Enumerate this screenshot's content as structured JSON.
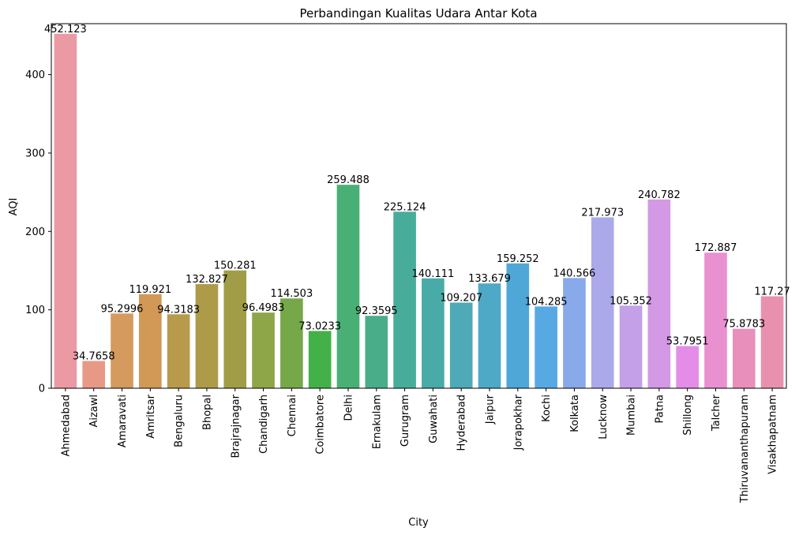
{
  "chart_data": {
    "type": "bar",
    "title": "Perbandingan Kualitas Udara Antar Kota",
    "xlabel": "City",
    "ylabel": "AQI",
    "ylim": [
      0,
      465
    ],
    "yticks": [
      0,
      100,
      200,
      300,
      400
    ],
    "grid": false,
    "categories": [
      "Ahmedabad",
      "Aizawl",
      "Amaravati",
      "Amritsar",
      "Bengaluru",
      "Bhopal",
      "Brajrajnagar",
      "Chandigarh",
      "Chennai",
      "Coimbatore",
      "Delhi",
      "Ernakulam",
      "Gurugram",
      "Guwahati",
      "Hyderabad",
      "Jaipur",
      "Jorapokhar",
      "Kochi",
      "Kolkata",
      "Lucknow",
      "Mumbai",
      "Patna",
      "Shillong",
      "Talcher",
      "Thiruvananthapuram",
      "Visakhapatnam"
    ],
    "values": [
      452.123,
      34.7658,
      95.2996,
      119.921,
      94.3183,
      132.827,
      150.281,
      96.4983,
      114.503,
      73.0233,
      259.488,
      92.3595,
      225.124,
      140.111,
      109.207,
      133.679,
      159.252,
      104.285,
      140.566,
      217.973,
      105.352,
      240.782,
      53.7951,
      172.887,
      75.8783,
      117.27
    ],
    "value_labels": [
      "452.123",
      "34.7658",
      "95.2996",
      "119.921",
      "94.3183",
      "132.827",
      "150.281",
      "96.4983",
      "114.503",
      "73.0233",
      "259.488",
      "92.3595",
      "225.124",
      "140.111",
      "109.207",
      "133.679",
      "159.252",
      "104.285",
      "140.566",
      "217.973",
      "105.352",
      "240.782",
      "53.7951",
      "172.887",
      "75.8783",
      "117.27"
    ],
    "colors": [
      "#eb9aa3",
      "#e89985",
      "#d59a5e",
      "#d19856",
      "#b89a4c",
      "#ae9b4a",
      "#a19d46",
      "#8ea648",
      "#76a84a",
      "#43b148",
      "#49b075",
      "#4aad8a",
      "#47ad9a",
      "#48aba7",
      "#4eaab7",
      "#4ea9c7",
      "#4fa7d8",
      "#56a9e3",
      "#88a9ea",
      "#aca9ea",
      "#c3a0e8",
      "#d399e5",
      "#e48de8",
      "#e890d0",
      "#e88fbc",
      "#e891ae"
    ]
  }
}
